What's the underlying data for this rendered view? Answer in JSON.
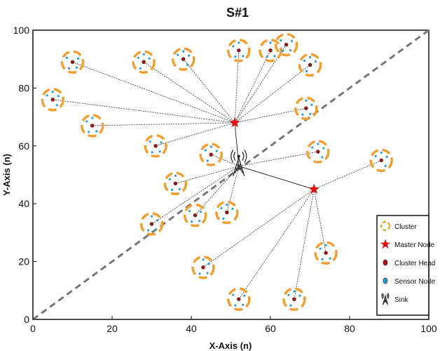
{
  "chart_data": {
    "type": "scatter",
    "title": "S#1",
    "xlabel": "X-Axis (n)",
    "ylabel": "Y-Axis (n)",
    "xlim": [
      0,
      100
    ],
    "ylim": [
      0,
      100
    ],
    "xticks": [
      "0",
      "20",
      "40",
      "60",
      "80",
      "100"
    ],
    "yticks": [
      "0",
      "20",
      "40",
      "60",
      "80",
      "100"
    ],
    "grid": false,
    "legend_position": "bottom-right",
    "diagonal_line": {
      "from": [
        0,
        0
      ],
      "to": [
        100,
        100
      ],
      "color": "#777777",
      "style": "dashed"
    },
    "sink": {
      "x": 52,
      "y": 53
    },
    "master_nodes": [
      {
        "x": 51,
        "y": 68
      },
      {
        "x": 71,
        "y": 45
      }
    ],
    "clusters": [
      {
        "x": 10,
        "y": 89,
        "master": 0
      },
      {
        "x": 28,
        "y": 89,
        "master": 0
      },
      {
        "x": 38,
        "y": 90,
        "master": 0
      },
      {
        "x": 52,
        "y": 93,
        "master": 0
      },
      {
        "x": 60,
        "y": 93,
        "master": 0
      },
      {
        "x": 64,
        "y": 95,
        "master": 0
      },
      {
        "x": 70,
        "y": 88,
        "master": 0
      },
      {
        "x": 5,
        "y": 76,
        "master": 0
      },
      {
        "x": 15,
        "y": 67,
        "master": 0
      },
      {
        "x": 69,
        "y": 73,
        "master": 0
      },
      {
        "x": 31,
        "y": 60,
        "master": 0
      },
      {
        "x": 45,
        "y": 57,
        "master": "sink"
      },
      {
        "x": 72,
        "y": 58,
        "master": "sink"
      },
      {
        "x": 36,
        "y": 47,
        "master": "sink"
      },
      {
        "x": 30,
        "y": 33,
        "master": "sink"
      },
      {
        "x": 41,
        "y": 36,
        "master": "sink"
      },
      {
        "x": 49,
        "y": 37,
        "master": "sink"
      },
      {
        "x": 88,
        "y": 55,
        "master": 1
      },
      {
        "x": 74,
        "y": 23,
        "master": 1
      },
      {
        "x": 43,
        "y": 18,
        "master": 1
      },
      {
        "x": 52,
        "y": 7,
        "master": 1
      },
      {
        "x": 66,
        "y": 7,
        "master": 1
      }
    ],
    "colors": {
      "cluster_ring": "#f0a033",
      "master": "#e01010",
      "cluster_head": "#b01010",
      "sensor": "#2d9cdb",
      "link": "#333333",
      "diagonal": "#777777"
    },
    "legend": [
      {
        "icon": "cluster-ring",
        "label": "Cluster"
      },
      {
        "icon": "star",
        "label": "Master Node"
      },
      {
        "icon": "cluster-head",
        "label": "Cluster Head"
      },
      {
        "icon": "sensor-node",
        "label": "Sensor Node"
      },
      {
        "icon": "sink-tower",
        "label": "Sink"
      }
    ]
  }
}
